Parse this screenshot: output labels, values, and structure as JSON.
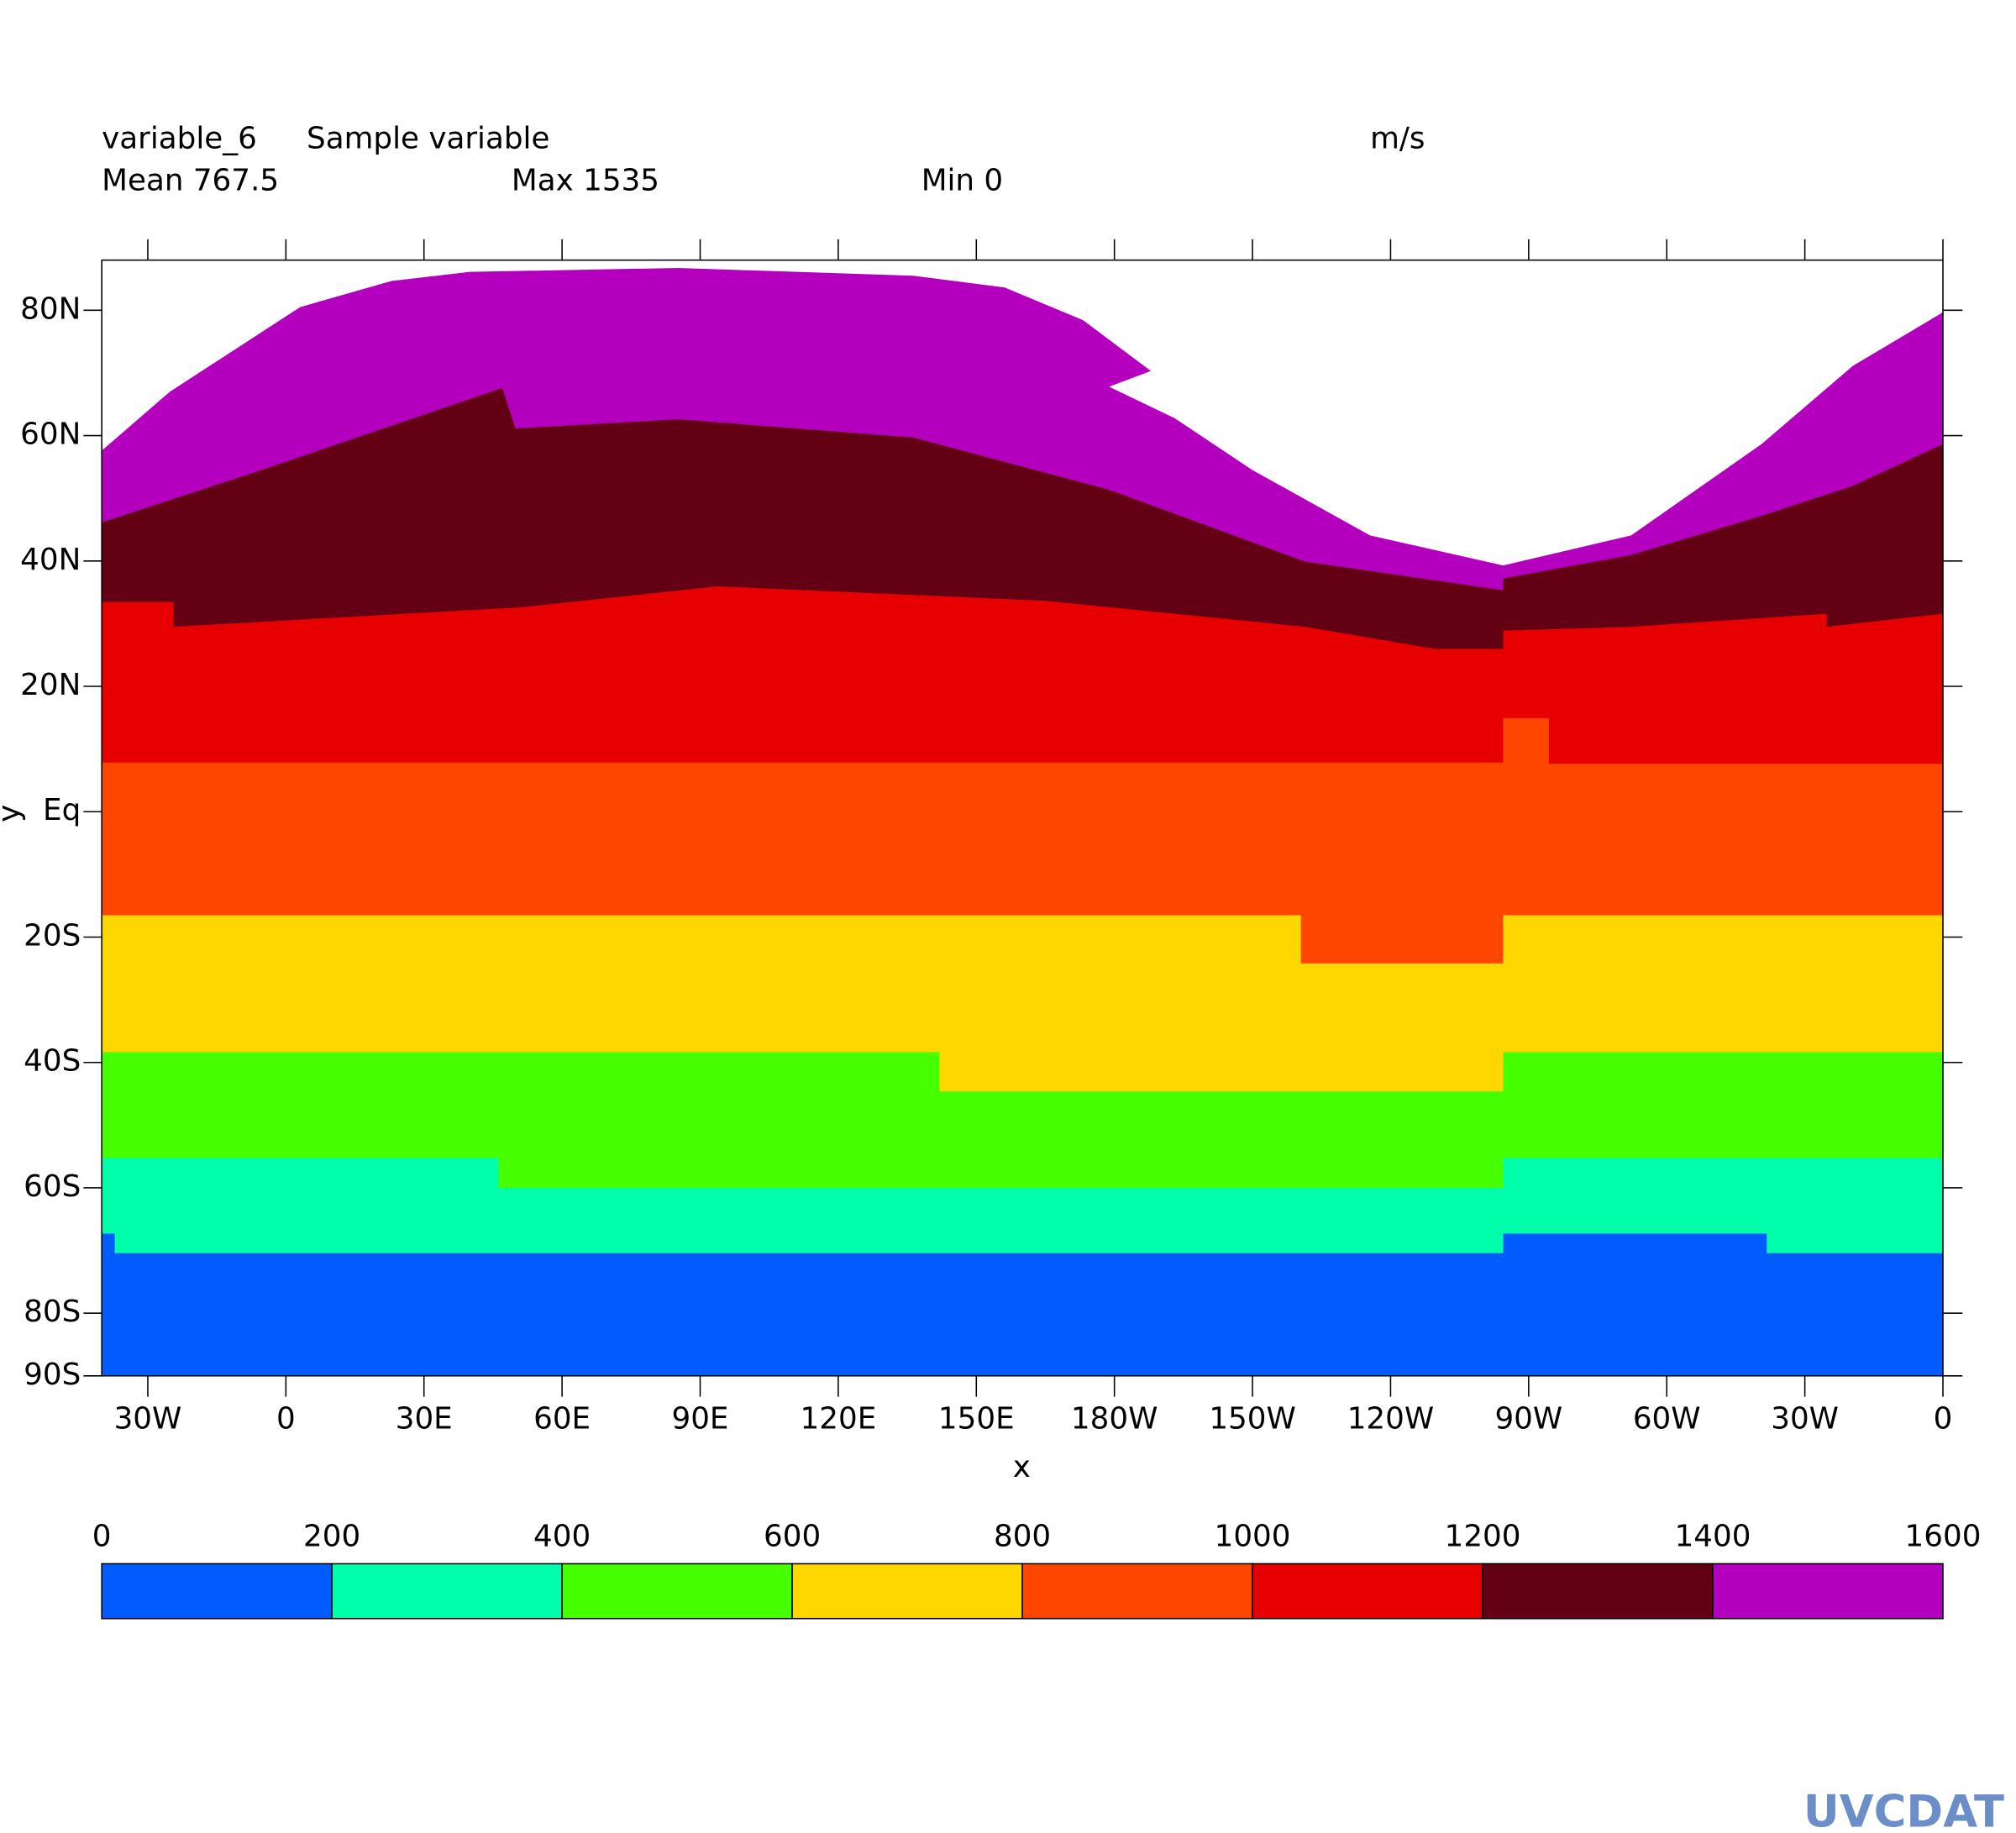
{
  "chart_data": {
    "type": "isofill",
    "title": "variable_6",
    "subtitle": "Sample variable",
    "units": "m/s",
    "stats": [
      "Mean 767.5",
      "Max 1535",
      "Min 0"
    ],
    "xlabel": "x",
    "ylabel": "y",
    "xlim": [
      -40,
      360
    ],
    "ylim": [
      -90,
      88
    ],
    "xticks": [
      {
        "value": -30,
        "label": "30W"
      },
      0,
      {
        "value": 30,
        "label": "30E"
      },
      {
        "value": 60,
        "label": "60E"
      },
      {
        "value": 90,
        "label": "90E"
      },
      {
        "value": 120,
        "label": "120E"
      },
      {
        "value": 150,
        "label": "150E"
      },
      {
        "value": 180,
        "label": "180W"
      },
      {
        "value": 210,
        "label": "150W"
      },
      {
        "value": 240,
        "label": "120W"
      },
      {
        "value": 270,
        "label": "90W"
      },
      {
        "value": 300,
        "label": "60W"
      },
      {
        "value": 330,
        "label": "30W"
      },
      {
        "value": 360,
        "label": "0"
      }
    ],
    "yticks": [
      {
        "value": 80,
        "label": "80N"
      },
      {
        "value": 60,
        "label": "60N"
      },
      {
        "value": 40,
        "label": "40N"
      },
      {
        "value": 20,
        "label": "20N"
      },
      {
        "value": 0,
        "label": "Eq"
      },
      {
        "value": -20,
        "label": "20S"
      },
      {
        "value": -40,
        "label": "40S"
      },
      {
        "value": -60,
        "label": "60S"
      },
      {
        "value": -80,
        "label": "80S"
      },
      {
        "value": -90,
        "label": "90S"
      }
    ],
    "levels": [
      0,
      200,
      400,
      600,
      800,
      1000,
      1200,
      1400,
      1600
    ],
    "colors": [
      "#005cff",
      "#00ffaa",
      "#46ff00",
      "#ffd700",
      "#ff4600",
      "#e60000",
      "#640014",
      "#b400be"
    ],
    "logo": "UVCDAT"
  }
}
